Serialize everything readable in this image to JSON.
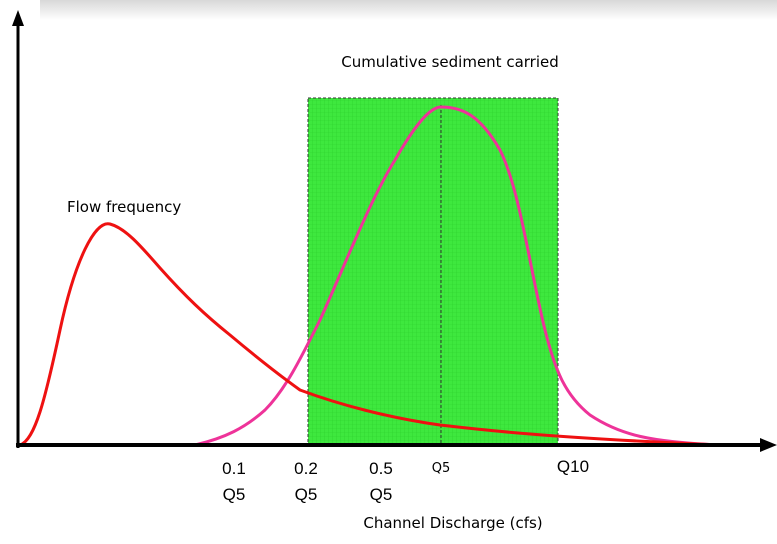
{
  "labels": {
    "sediment_curve": "Cumulative sediment carried",
    "flow_curve": "Flow frequency"
  },
  "x_axis": {
    "title": "Channel Discharge (cfs)",
    "ticks": [
      [
        "0.1",
        "Q5"
      ],
      [
        "0.2",
        "Q5"
      ],
      [
        "0.5",
        "Q5"
      ]
    ],
    "markers": [
      "Q5",
      "Q10"
    ]
  }
}
